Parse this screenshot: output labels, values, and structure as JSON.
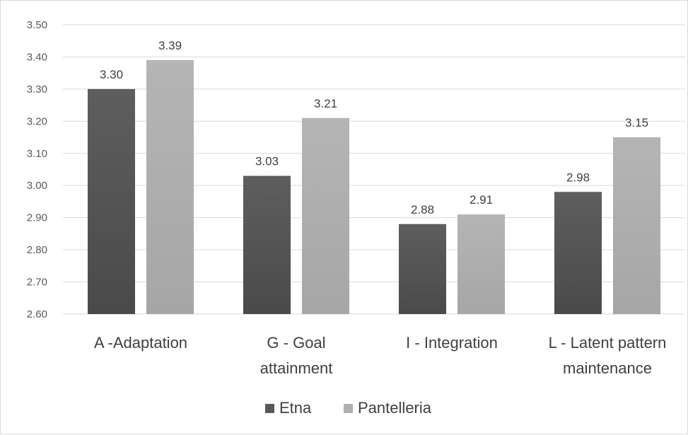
{
  "chart_data": {
    "type": "bar",
    "title": "",
    "xlabel": "",
    "ylabel": "",
    "categories": [
      [
        "A -Adaptation"
      ],
      [
        "G - Goal",
        "attainment"
      ],
      [
        "I - Integration"
      ],
      [
        "L - Latent pattern",
        "maintenance"
      ]
    ],
    "series": [
      {
        "name": "Etna",
        "values": [
          3.3,
          3.03,
          2.88,
          2.98
        ],
        "labels": [
          "3.30",
          "3.03",
          "2.88",
          "2.98"
        ]
      },
      {
        "name": "Pantelleria",
        "values": [
          3.39,
          3.21,
          2.91,
          3.15
        ],
        "labels": [
          "3.39",
          "3.21",
          "2.91",
          "3.15"
        ]
      }
    ],
    "ylim": [
      2.6,
      3.5
    ],
    "yticks": [
      "2.60",
      "2.70",
      "2.80",
      "2.90",
      "3.00",
      "3.10",
      "3.20",
      "3.30",
      "3.40",
      "3.50"
    ],
    "grid": true,
    "legend_position": "bottom"
  },
  "colors": {
    "Etna": "#595959",
    "Pantelleria": "#b0b0b0"
  }
}
